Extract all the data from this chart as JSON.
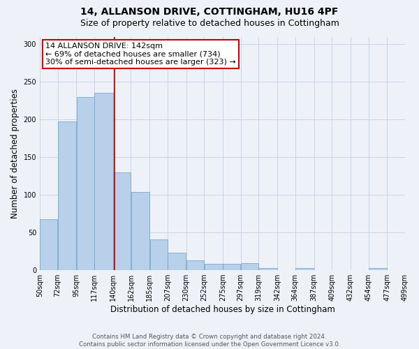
{
  "title": "14, ALLANSON DRIVE, COTTINGHAM, HU16 4PF",
  "subtitle": "Size of property relative to detached houses in Cottingham",
  "xlabel": "Distribution of detached houses by size in Cottingham",
  "ylabel": "Number of detached properties",
  "bar_color": "#b8d0ea",
  "bar_edge_color": "#6a9ec5",
  "grid_color": "#c8d4e8",
  "background_color": "#eef2f8",
  "vline_value": 142,
  "vline_color": "#cc0000",
  "annotation_text": "14 ALLANSON DRIVE: 142sqm\n← 69% of detached houses are smaller (734)\n30% of semi-detached houses are larger (323) →",
  "annotation_box_color": "#ffffff",
  "annotation_box_edge": "#cc0000",
  "bin_edges": [
    50,
    72,
    95,
    117,
    140,
    162,
    185,
    207,
    230,
    252,
    275,
    297,
    319,
    342,
    364,
    387,
    409,
    432,
    454,
    477,
    499
  ],
  "bar_heights": [
    68,
    197,
    230,
    235,
    130,
    104,
    41,
    23,
    13,
    8,
    8,
    9,
    3,
    0,
    3,
    0,
    0,
    0,
    3,
    0
  ],
  "tick_labels": [
    "50sqm",
    "72sqm",
    "95sqm",
    "117sqm",
    "140sqm",
    "162sqm",
    "185sqm",
    "207sqm",
    "230sqm",
    "252sqm",
    "275sqm",
    "297sqm",
    "319sqm",
    "342sqm",
    "364sqm",
    "387sqm",
    "409sqm",
    "432sqm",
    "454sqm",
    "477sqm",
    "499sqm"
  ],
  "ylim": [
    0,
    310
  ],
  "yticks": [
    0,
    50,
    100,
    150,
    200,
    250,
    300
  ],
  "footer_text": "Contains HM Land Registry data © Crown copyright and database right 2024.\nContains public sector information licensed under the Open Government Licence v3.0.",
  "title_fontsize": 10,
  "subtitle_fontsize": 9,
  "axis_label_fontsize": 8.5,
  "tick_fontsize": 7,
  "annotation_fontsize": 8
}
